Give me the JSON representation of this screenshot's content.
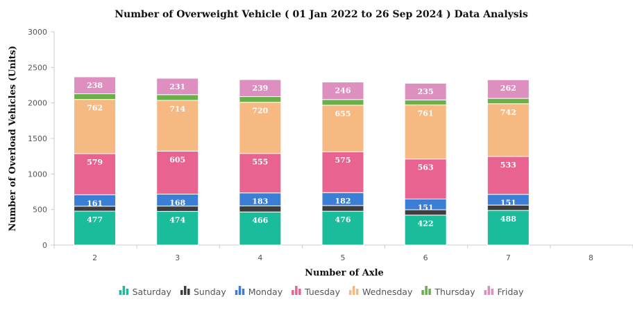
{
  "chart_data": {
    "type": "bar",
    "stacked": true,
    "title": "Number of Overweight Vehicle ( 01 Jan 2022 to 26 Sep 2024 ) Data Analysis",
    "xlabel": "Number of Axle",
    "ylabel": "Number of Overload Vehicles (Units)",
    "ylim": [
      0,
      3000
    ],
    "yticks": [
      0,
      500,
      1000,
      1500,
      2000,
      2500,
      3000
    ],
    "categories": [
      "2",
      "3",
      "4",
      "5",
      "6",
      "7",
      "8"
    ],
    "legend_position": "bottom",
    "series": [
      {
        "name": "Saturday",
        "color": "#1abc9c",
        "values": [
          477,
          474,
          466,
          476,
          422,
          488,
          0
        ],
        "labels_shown": true
      },
      {
        "name": "Sunday",
        "color": "#3d3d3d",
        "values": [
          70,
          75,
          85,
          80,
          75,
          75,
          0
        ],
        "labels_shown": false
      },
      {
        "name": "Monday",
        "color": "#3a7fd5",
        "values": [
          161,
          168,
          183,
          182,
          151,
          151,
          0
        ],
        "labels_shown": true
      },
      {
        "name": "Tuesday",
        "color": "#e8638f",
        "values": [
          579,
          605,
          555,
          575,
          563,
          533,
          0
        ],
        "labels_shown": true
      },
      {
        "name": "Wednesday",
        "color": "#f7b982",
        "values": [
          762,
          714,
          720,
          655,
          761,
          742,
          0
        ],
        "labels_shown": true
      },
      {
        "name": "Thursday",
        "color": "#6aaf4a",
        "values": [
          80,
          80,
          80,
          80,
          70,
          75,
          0
        ],
        "labels_shown": false
      },
      {
        "name": "Friday",
        "color": "#dd8fc0",
        "values": [
          238,
          231,
          239,
          246,
          235,
          262,
          0
        ],
        "labels_shown": true
      }
    ]
  }
}
